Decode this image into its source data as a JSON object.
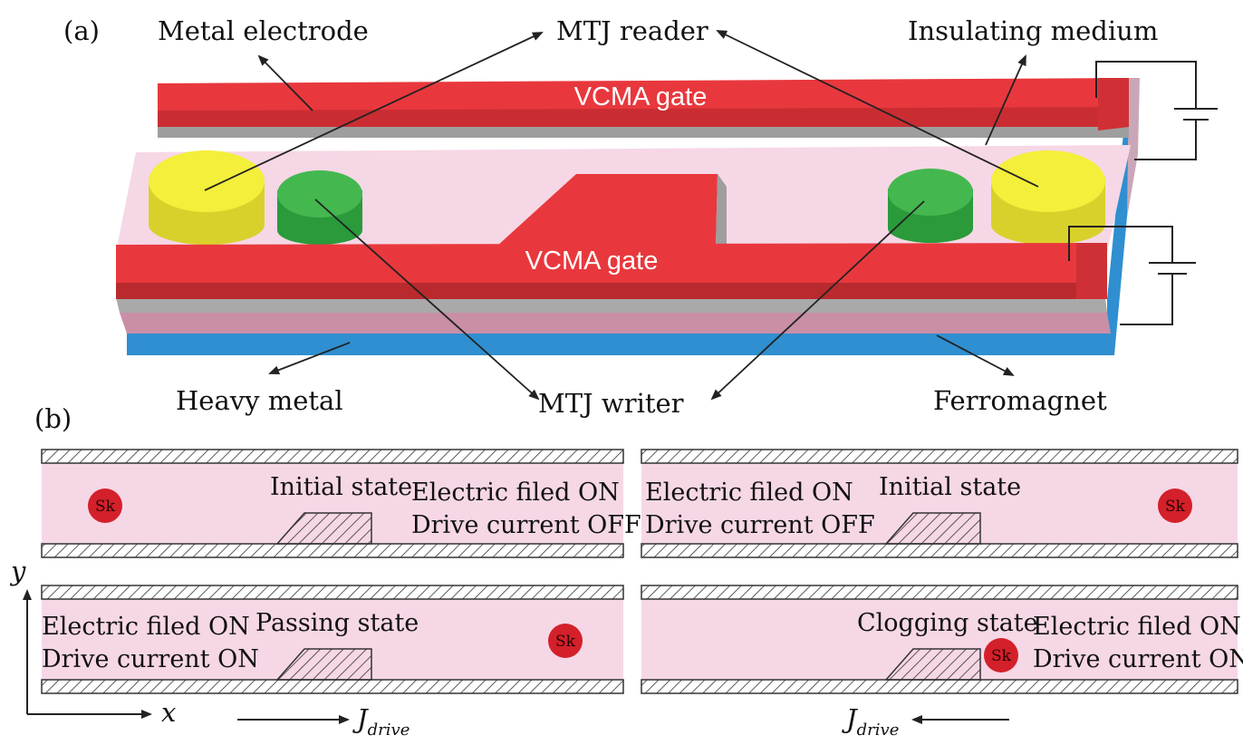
{
  "panel_a": {
    "label": "(a)",
    "callouts": {
      "metal_electrode": "Metal electrode",
      "mtj_reader": "MTJ reader",
      "insulating_medium": "Insulating medium",
      "heavy_metal": "Heavy metal",
      "mtj_writer": "MTJ writer",
      "ferromagnet": "Ferromagnet"
    },
    "gate_top": "VCMA gate",
    "gate_bottom": "VCMA gate"
  },
  "panel_b": {
    "label": "(b)",
    "tl": {
      "state": "Initial state",
      "line1": "Electric filed ON",
      "line2": "Drive current OFF",
      "sk": "Sk"
    },
    "tr": {
      "state": "Initial state",
      "line1": "Electric filed ON",
      "line2": "Drive current OFF",
      "sk": "Sk"
    },
    "bl": {
      "state": "Passing state",
      "line1": "Electric filed ON",
      "line2": "Drive current ON",
      "sk": "Sk"
    },
    "br": {
      "state": "Clogging state",
      "line1": "Electric filed ON",
      "line2": "Drive current ON",
      "sk": "Sk"
    },
    "axis_y": "y",
    "axis_x": "x",
    "j_main": "J",
    "j_sub": "drive"
  },
  "colors": {
    "gate_red": "#e8383d",
    "gate_dark": "#b82a2e",
    "track_pink": "#f6d7e6",
    "reader_yellow": "#f3ef3a",
    "writer_green": "#3db54a",
    "ferromagnet_blue": "#2f8fd0",
    "skyrmion_red": "#d3202a"
  }
}
